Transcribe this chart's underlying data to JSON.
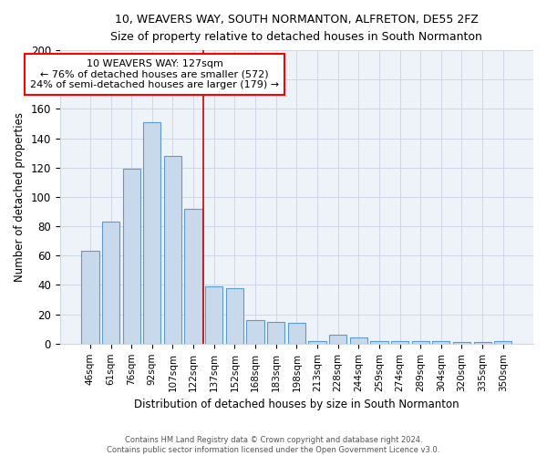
{
  "title": "10, WEAVERS WAY, SOUTH NORMANTON, ALFRETON, DE55 2FZ",
  "subtitle": "Size of property relative to detached houses in South Normanton",
  "xlabel": "Distribution of detached houses by size in South Normanton",
  "ylabel": "Number of detached properties",
  "footer_line1": "Contains HM Land Registry data © Crown copyright and database right 2024.",
  "footer_line2": "Contains public sector information licensed under the Open Government Licence v3.0.",
  "categories": [
    "46sqm",
    "61sqm",
    "76sqm",
    "92sqm",
    "107sqm",
    "122sqm",
    "137sqm",
    "152sqm",
    "168sqm",
    "183sqm",
    "198sqm",
    "213sqm",
    "228sqm",
    "244sqm",
    "259sqm",
    "274sqm",
    "289sqm",
    "304sqm",
    "320sqm",
    "335sqm",
    "350sqm"
  ],
  "values": [
    63,
    83,
    119,
    151,
    128,
    92,
    39,
    38,
    16,
    15,
    14,
    2,
    6,
    4,
    2,
    2,
    2,
    2,
    1,
    1,
    2
  ],
  "bar_color": "#c9d9ec",
  "bar_edge_color": "#5b9bd5",
  "annotation_text_line1": "10 WEAVERS WAY: 127sqm",
  "annotation_text_line2": "← 76% of detached houses are smaller (572)",
  "annotation_text_line3": "24% of semi-detached houses are larger (179) →",
  "red_line_color": "#cc0000",
  "grid_color": "#d0d8e8",
  "background_color": "#eef2f9",
  "ylim": [
    0,
    200
  ],
  "yticks": [
    0,
    20,
    40,
    60,
    80,
    100,
    120,
    140,
    160,
    180,
    200
  ],
  "red_line_x": 5.5
}
